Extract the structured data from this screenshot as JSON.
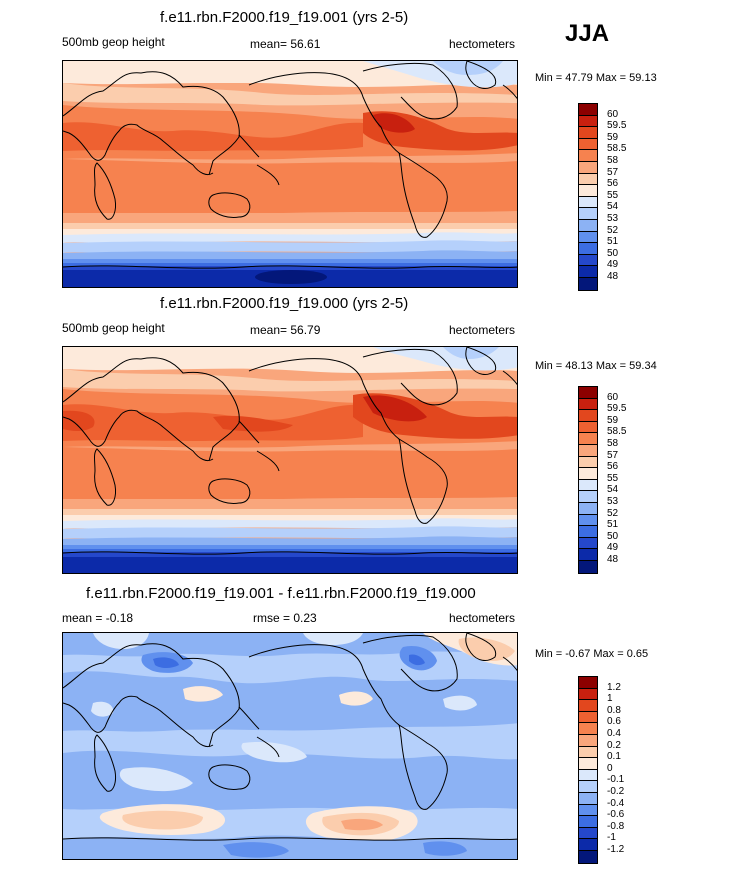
{
  "season": "JJA",
  "panels": [
    {
      "title": "f.e11.rbn.F2000.f19_f19.001 (yrs 2-5)",
      "left_label": "500mb geop height",
      "center_label": "mean=  56.61",
      "right_label": "hectometers",
      "minmax": "Min =  47.79 Max =  59.13",
      "colorbar": {
        "labels": [
          "60",
          "59.5",
          "59",
          "58.5",
          "58",
          "57",
          "56",
          "55",
          "54",
          "53",
          "52",
          "51",
          "50",
          "49",
          "48"
        ],
        "colors": [
          "#8c0000",
          "#c8200f",
          "#e2471e",
          "#ee6131",
          "#f6824f",
          "#f9a67c",
          "#fbcdad",
          "#fdeadb",
          "#dbe8fb",
          "#b5d0fb",
          "#8cb2f4",
          "#6090ee",
          "#3c6de2",
          "#2548cb",
          "#0c2aa9",
          "#03177a"
        ]
      }
    },
    {
      "title": "f.e11.rbn.F2000.f19_f19.000 (yrs 2-5)",
      "left_label": "500mb geop height",
      "center_label": "mean=  56.79",
      "right_label": "hectometers",
      "minmax": "Min =  48.13 Max =  59.34",
      "colorbar": {
        "labels": [
          "60",
          "59.5",
          "59",
          "58.5",
          "58",
          "57",
          "56",
          "55",
          "54",
          "53",
          "52",
          "51",
          "50",
          "49",
          "48"
        ],
        "colors": [
          "#8c0000",
          "#c8200f",
          "#e2471e",
          "#ee6131",
          "#f6824f",
          "#f9a67c",
          "#fbcdad",
          "#fdeadb",
          "#dbe8fb",
          "#b5d0fb",
          "#8cb2f4",
          "#6090ee",
          "#3c6de2",
          "#2548cb",
          "#0c2aa9",
          "#03177a"
        ]
      }
    },
    {
      "title": "f.e11.rbn.F2000.f19_f19.001 - f.e11.rbn.F2000.f19_f19.000",
      "left_label": "mean =  -0.18",
      "center_label": "rmse =   0.23",
      "right_label": "hectometers",
      "minmax": "Min =  -0.67 Max =   0.65",
      "colorbar": {
        "labels": [
          "1.2",
          "1",
          "0.8",
          "0.6",
          "0.4",
          "0.2",
          "0.1",
          "0",
          "-0.1",
          "-0.2",
          "-0.4",
          "-0.6",
          "-0.8",
          "-1",
          "-1.2"
        ],
        "colors": [
          "#8c0000",
          "#c8200f",
          "#e2471e",
          "#ee6131",
          "#f6824f",
          "#f9a67c",
          "#fbcdad",
          "#fdeadb",
          "#dbe8fb",
          "#b5d0fb",
          "#8cb2f4",
          "#6090ee",
          "#3c6de2",
          "#2548cb",
          "#0c2aa9",
          "#03177a"
        ]
      }
    }
  ]
}
